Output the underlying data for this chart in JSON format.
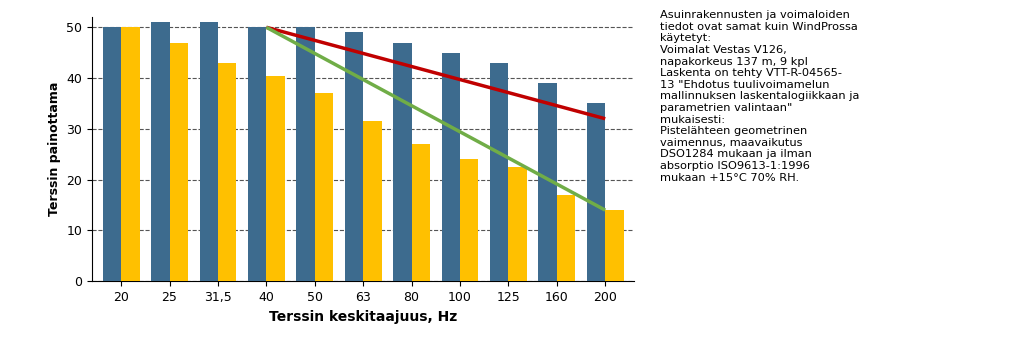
{
  "categories": [
    "20",
    "25",
    "31,5",
    "40",
    "50",
    "63",
    "80",
    "100",
    "125",
    "160",
    "200"
  ],
  "blue_bars": [
    50,
    51,
    51,
    50,
    50,
    49,
    47,
    45,
    43,
    39,
    35
  ],
  "yellow_bars": [
    50,
    47,
    43,
    40.5,
    37,
    31.5,
    27,
    24,
    22.5,
    17,
    14
  ],
  "red_line_x": [
    3,
    10
  ],
  "red_line_y": [
    50,
    32
  ],
  "green_line_x": [
    3,
    10
  ],
  "green_line_y": [
    50,
    14
  ],
  "blue_color": "#3d6b8e",
  "yellow_color": "#ffc000",
  "red_color": "#c00000",
  "green_color": "#70ad47",
  "ylabel": "Terssin painottama",
  "xlabel": "Terssin keskitaajuus, Hz",
  "ylim": [
    0,
    52
  ],
  "yticks": [
    0,
    10,
    20,
    30,
    40,
    50
  ],
  "annotation_text": "Asuinrakennusten ja voimaloiden\ntiedot ovat samat kuin WindProssa\nkäytetyt:\nVoimalat Vestas V126,\nnapakorkeus 137 m, 9 kpl\nLaskenta on tehty VTT-R-04565-\n13 \"Ehdotus tuulivoimamelun\nmallinnuksen laskentalogiikkaan ja\nparametrien valintaan\"\nmukaisesti:\nPistelähteen geometrinen\nvaimennus, maavaikutus\nDSO1284 mukaan ja ilman\nabsorptio ISO9613-1:1996\nmukaan +15°C 70% RH.",
  "bar_width": 0.38
}
